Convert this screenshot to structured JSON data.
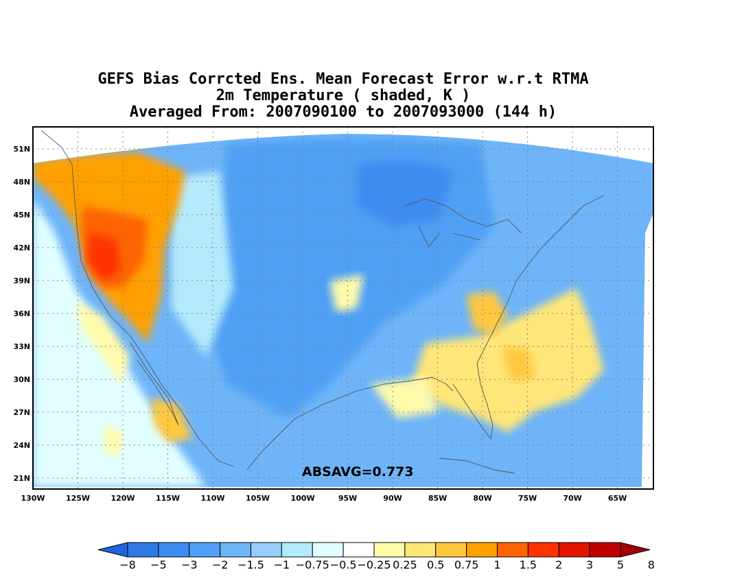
{
  "titles": {
    "line1": "GEFS Bias Corrcted Ens. Mean Forecast Error w.r.t RTMA",
    "line2": "2m Temperature ( shaded, K )",
    "line3": "Averaged From: 2007090100 to 2007093000 (144 h)"
  },
  "map": {
    "lon_range": [
      -130,
      -61
    ],
    "lat_range": [
      20,
      53
    ],
    "lat_ticks": [
      "51N",
      "48N",
      "45N",
      "42N",
      "39N",
      "36N",
      "33N",
      "30N",
      "27N",
      "24N",
      "21N"
    ],
    "lat_tick_values": [
      51,
      48,
      45,
      42,
      39,
      36,
      33,
      30,
      27,
      24,
      21
    ],
    "lon_ticks": [
      "130W",
      "125W",
      "120W",
      "115W",
      "110W",
      "105W",
      "100W",
      "95W",
      "90W",
      "85W",
      "80W",
      "75W",
      "70W",
      "65W"
    ],
    "lon_tick_values": [
      -130,
      -125,
      -120,
      -115,
      -110,
      -105,
      -100,
      -95,
      -90,
      -85,
      -80,
      -75,
      -70,
      -65
    ],
    "grid": "dotted",
    "statistic": "ABSAVG=0.773"
  },
  "colorbar": {
    "labels": [
      "−8",
      "−5",
      "−3",
      "−2",
      "−1.5",
      "−1",
      "−0.75",
      "−0.5",
      "−0.25",
      "0.25",
      "0.5",
      "0.75",
      "1",
      "1.5",
      "2",
      "3",
      "5",
      "8"
    ],
    "colors": [
      "#1e64dc",
      "#2d7ae6",
      "#3c8cf0",
      "#50a0f5",
      "#6eb4f8",
      "#96cdfc",
      "#b4ebfc",
      "#e1ffff",
      "#ffffff",
      "#fffaaa",
      "#ffe678",
      "#ffc83c",
      "#ffa000",
      "#ff6400",
      "#ff3200",
      "#e11400",
      "#c00000",
      "#a50000"
    ]
  },
  "regions": [
    {
      "name": "west-coast-warm",
      "color": "#ff6400"
    },
    {
      "name": "southeast-warm",
      "color": "#ffe678"
    },
    {
      "name": "central-cool",
      "color": "#6eb4f8"
    }
  ]
}
